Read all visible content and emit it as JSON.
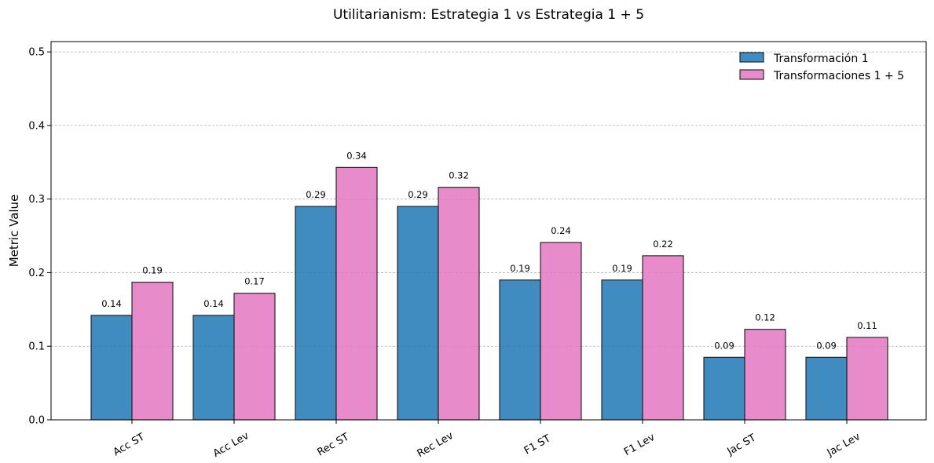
{
  "chart_data": {
    "type": "bar",
    "title": "Utilitarianism: Estrategia 1 vs Estrategia 1 + 5",
    "xlabel": "",
    "ylabel": "Metric Value",
    "ylim": [
      0,
      0.514
    ],
    "yticks": [
      0.0,
      0.1,
      0.2,
      0.3,
      0.4,
      0.5
    ],
    "ytick_labels": [
      "0.0",
      "0.1",
      "0.2",
      "0.3",
      "0.4",
      "0.5"
    ],
    "categories": [
      "Acc ST",
      "Acc Lev",
      "Rec ST",
      "Rec Lev",
      "F1 ST",
      "F1 Lev",
      "Jac ST",
      "Jac Lev"
    ],
    "series": [
      {
        "name": "Transformación 1",
        "color": "#1f77b4",
        "values": [
          0.142,
          0.142,
          0.29,
          0.29,
          0.19,
          0.19,
          0.085,
          0.085
        ],
        "labels": [
          "0.14",
          "0.14",
          "0.29",
          "0.29",
          "0.19",
          "0.19",
          "0.09",
          "0.09"
        ]
      },
      {
        "name": "Transformaciones 1 + 5",
        "color": "#e377c2",
        "values": [
          0.187,
          0.172,
          0.343,
          0.316,
          0.241,
          0.223,
          0.123,
          0.112
        ],
        "labels": [
          "0.19",
          "0.17",
          "0.34",
          "0.32",
          "0.24",
          "0.22",
          "0.12",
          "0.11"
        ]
      }
    ],
    "grid": "y-dashed",
    "legend_position": "upper-right"
  }
}
